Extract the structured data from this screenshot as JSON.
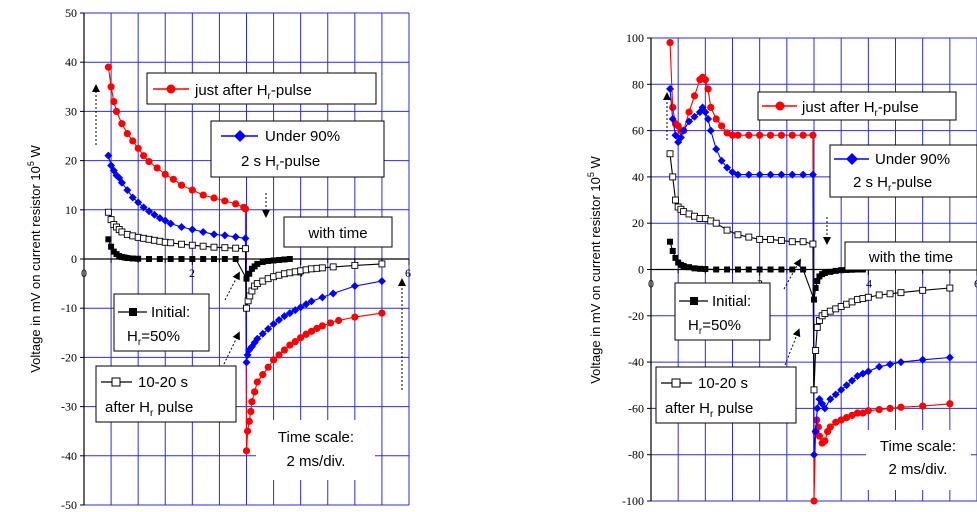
{
  "chart_data": [
    {
      "type": "line",
      "ylabel": "Voltage in mV on current resistor 10^5 W",
      "ylabel_main": "Voltage in mV on current resistor 10",
      "ylabel_sup": "5",
      "ylabel_unit": " W",
      "xlim": [
        0,
        6
      ],
      "ylim": [
        -50,
        50
      ],
      "x_ticks": [
        "0",
        "2",
        "4",
        "6"
      ],
      "y_ticks": [
        "50",
        "40",
        "30",
        "20",
        "10",
        "0",
        "-10",
        "-20",
        "-30",
        "-40",
        "-50"
      ],
      "grid": true,
      "series": [
        {
          "name": "just after Hr-pulse",
          "color": "#ff0000",
          "marker": "circle",
          "x": [
            0.45,
            0.5,
            0.55,
            0.6,
            0.7,
            0.8,
            0.9,
            1.0,
            1.1,
            1.2,
            1.35,
            1.5,
            1.65,
            1.8,
            2.0,
            2.2,
            2.4,
            2.6,
            2.8,
            2.95,
            2.98,
            3.0,
            3.02,
            3.05,
            3.08,
            3.1,
            3.15,
            3.2,
            3.3,
            3.4,
            3.5,
            3.6,
            3.7,
            3.8,
            3.9,
            4.0,
            4.1,
            4.2,
            4.3,
            4.4,
            4.55,
            4.7,
            5.0,
            5.5
          ],
          "y": [
            39,
            35,
            32,
            30,
            27.5,
            25.5,
            24,
            22.5,
            21,
            19.8,
            18.5,
            17.2,
            16.2,
            15,
            14,
            13,
            12.4,
            11.8,
            11.2,
            10.5,
            10.2,
            -39,
            -35,
            -33,
            -31,
            -29,
            -27,
            -25,
            -23.5,
            -22,
            -20.5,
            -19.5,
            -18.5,
            -17.5,
            -16.8,
            -16,
            -15.3,
            -14.7,
            -14.1,
            -13.6,
            -13,
            -12.5,
            -11.8,
            -11
          ]
        },
        {
          "name": "Under 90% 2 s Hr-pulse",
          "color": "#0000ff",
          "marker": "diamond",
          "x": [
            0.45,
            0.5,
            0.55,
            0.6,
            0.65,
            0.7,
            0.8,
            0.9,
            1.0,
            1.1,
            1.2,
            1.3,
            1.4,
            1.5,
            1.6,
            1.8,
            2.0,
            2.2,
            2.4,
            2.6,
            2.8,
            2.98,
            3.0,
            3.02,
            3.05,
            3.1,
            3.15,
            3.2,
            3.3,
            3.4,
            3.5,
            3.6,
            3.7,
            3.8,
            3.9,
            4.0,
            4.1,
            4.2,
            4.4,
            4.6,
            5.0,
            5.5
          ],
          "y": [
            21,
            19,
            18,
            17,
            16.5,
            15.5,
            14,
            12.5,
            11.5,
            10.5,
            9.7,
            9,
            8.3,
            7.8,
            7.2,
            6.5,
            6,
            5.5,
            5,
            4.8,
            4.5,
            4.2,
            -21,
            -19.5,
            -18.5,
            -17.8,
            -17,
            -16.2,
            -15.2,
            -14.2,
            -13.2,
            -12.4,
            -11.6,
            -11,
            -10.4,
            -9.8,
            -9.2,
            -8.6,
            -7.8,
            -7,
            -5.5,
            -4.5
          ]
        },
        {
          "name": "10-20 s after Hr pulse",
          "color": "#000000",
          "marker": "open-square",
          "x": [
            0.45,
            0.5,
            0.55,
            0.6,
            0.65,
            0.7,
            0.8,
            0.9,
            1.0,
            1.1,
            1.2,
            1.3,
            1.4,
            1.5,
            1.6,
            1.8,
            2.0,
            2.2,
            2.4,
            2.6,
            2.8,
            2.98,
            3.0,
            3.03,
            3.06,
            3.1,
            3.15,
            3.2,
            3.3,
            3.4,
            3.5,
            3.6,
            3.7,
            3.8,
            3.9,
            4.0,
            4.1,
            4.2,
            4.3,
            4.4,
            4.6,
            5.0,
            5.5
          ],
          "y": [
            9.5,
            8,
            7,
            6.5,
            6,
            5.5,
            5,
            4.7,
            4.4,
            4.2,
            4,
            3.8,
            3.6,
            3.4,
            3.3,
            3,
            2.8,
            2.6,
            2.4,
            2.3,
            2.2,
            2.1,
            -10,
            -8.5,
            -7.5,
            -6.5,
            -5.5,
            -5,
            -4.5,
            -4,
            -3.6,
            -3.3,
            -3,
            -2.8,
            -2.6,
            -2.4,
            -2.2,
            -2,
            -1.9,
            -1.8,
            -1.6,
            -1.3,
            -1
          ]
        },
        {
          "name": "Initial: Hr=50%",
          "color": "#000000",
          "marker": "square",
          "x": [
            0.45,
            0.5,
            0.55,
            0.6,
            0.65,
            0.7,
            0.75,
            0.8,
            0.9,
            1.0,
            1.2,
            1.4,
            1.6,
            1.8,
            2.0,
            2.2,
            2.4,
            2.6,
            2.8,
            3.0,
            3.05,
            3.1,
            3.15,
            3.2,
            3.3,
            3.4,
            3.5,
            3.6,
            3.7,
            3.8
          ],
          "y": [
            4,
            2.5,
            1.5,
            1,
            0.6,
            0.4,
            0.3,
            0.2,
            0.1,
            0.05,
            0,
            0,
            0,
            0,
            0,
            0,
            0,
            0,
            0,
            -4,
            -3,
            -2,
            -1.5,
            -1,
            -0.6,
            -0.4,
            -0.3,
            -0.2,
            -0.1,
            0
          ]
        }
      ],
      "annotations": {
        "legend_red_prefix": "just after H",
        "legend_red_sub": "r",
        "legend_red_suffix": "-pulse",
        "legend_blue_line1": "Under 90%",
        "legend_blue_line2_prefix": "2 s H",
        "legend_blue_line2_sub": "r",
        "legend_blue_line2_suffix": "-pulse",
        "legend_initial_line1": "Initial:",
        "legend_initial_line2_prefix": "H",
        "legend_initial_line2_sub": "r",
        "legend_initial_line2_suffix": "=50%",
        "legend_1020_line1": "10-20 s",
        "legend_1020_line2_prefix": "after H",
        "legend_1020_line2_sub": "r",
        "legend_1020_line2_suffix": " pulse",
        "with_time": "with time",
        "time_scale_1": "Time scale:",
        "time_scale_2": "2 ms/div."
      }
    },
    {
      "type": "line",
      "ylabel": "Voltage in mV on current resistor 10^5 W",
      "ylabel_main": "Voltage in mV on current resistor 10",
      "ylabel_sup": "5",
      "ylabel_unit": " W",
      "xlim": [
        0,
        6
      ],
      "ylim": [
        -100,
        100
      ],
      "x_ticks": [
        "0",
        "2",
        "4",
        "6"
      ],
      "y_ticks": [
        "100",
        "80",
        "60",
        "40",
        "20",
        "0",
        "-20",
        "-40",
        "-60",
        "-80",
        "-100"
      ],
      "grid": true,
      "series": [
        {
          "name": "just after Hr-pulse",
          "color": "#ff0000",
          "marker": "circle",
          "x": [
            0.35,
            0.4,
            0.45,
            0.5,
            0.55,
            0.6,
            0.7,
            0.8,
            0.9,
            0.95,
            1.0,
            1.05,
            1.1,
            1.2,
            1.3,
            1.4,
            1.5,
            1.6,
            1.8,
            2.0,
            2.2,
            2.4,
            2.6,
            2.8,
            2.98,
            3.0,
            3.03,
            3.05,
            3.08,
            3.1,
            3.15,
            3.2,
            3.25,
            3.3,
            3.4,
            3.5,
            3.6,
            3.7,
            3.8,
            3.9,
            4.0,
            4.2,
            4.4,
            4.6,
            5.0,
            5.5
          ],
          "y": [
            98,
            70,
            63,
            62,
            60,
            60,
            68,
            75,
            82,
            83,
            82,
            78,
            70,
            65,
            62,
            59,
            58,
            58,
            58,
            58,
            58,
            58,
            58,
            58,
            58,
            -100,
            -70,
            -65,
            -68,
            -72,
            -75,
            -74,
            -70,
            -68,
            -66,
            -65,
            -64,
            -63,
            -62,
            -62,
            -61,
            -60.5,
            -60,
            -59.5,
            -59,
            -58
          ]
        },
        {
          "name": "Under 90% 2 s Hr-pulse",
          "color": "#0000ff",
          "marker": "diamond",
          "x": [
            0.35,
            0.4,
            0.45,
            0.5,
            0.55,
            0.6,
            0.7,
            0.8,
            0.9,
            0.95,
            1.0,
            1.05,
            1.1,
            1.2,
            1.3,
            1.4,
            1.5,
            1.6,
            1.8,
            2.0,
            2.2,
            2.4,
            2.6,
            2.8,
            2.98,
            3.0,
            3.03,
            3.06,
            3.1,
            3.15,
            3.2,
            3.3,
            3.4,
            3.5,
            3.6,
            3.7,
            3.8,
            3.9,
            4.0,
            4.2,
            4.4,
            4.6,
            5.0,
            5.5
          ],
          "y": [
            78,
            65,
            58,
            55,
            57,
            60,
            64,
            66,
            68,
            70,
            68,
            65,
            60,
            52,
            47,
            44,
            42,
            41,
            41,
            41,
            41,
            41,
            41,
            41,
            41,
            -80,
            -70,
            -60,
            -56,
            -58,
            -60,
            -56,
            -54,
            -52,
            -50,
            -48,
            -46,
            -45,
            -44,
            -42,
            -41,
            -40,
            -39,
            -38
          ]
        },
        {
          "name": "10-20 s after Hr pulse",
          "color": "#000000",
          "marker": "open-square",
          "x": [
            0.35,
            0.4,
            0.45,
            0.5,
            0.55,
            0.6,
            0.7,
            0.8,
            0.9,
            1.0,
            1.1,
            1.2,
            1.4,
            1.6,
            1.8,
            2.0,
            2.2,
            2.4,
            2.6,
            2.8,
            2.98,
            3.0,
            3.03,
            3.06,
            3.1,
            3.15,
            3.2,
            3.3,
            3.4,
            3.5,
            3.6,
            3.7,
            3.8,
            3.9,
            4.0,
            4.2,
            4.4,
            4.6,
            5.0,
            5.5
          ],
          "y": [
            50,
            40,
            30,
            27,
            26,
            25,
            24,
            23,
            22,
            22,
            21,
            20,
            17,
            15,
            14,
            13,
            13,
            12.5,
            12,
            12,
            11,
            -52,
            -35,
            -25,
            -22,
            -20,
            -19,
            -18,
            -17,
            -16,
            -15,
            -14,
            -13,
            -12.5,
            -12,
            -11,
            -10.5,
            -10,
            -9,
            -8
          ]
        },
        {
          "name": "Initial: Hr=50%",
          "color": "#000000",
          "marker": "square",
          "x": [
            0.35,
            0.4,
            0.45,
            0.5,
            0.55,
            0.6,
            0.7,
            0.8,
            0.9,
            1.0,
            1.2,
            1.4,
            1.6,
            1.8,
            2.0,
            2.2,
            2.4,
            2.6,
            2.8,
            3.0,
            3.03,
            3.06,
            3.1,
            3.15,
            3.2,
            3.3,
            3.4,
            3.5,
            3.6,
            3.7,
            3.8,
            3.9
          ],
          "y": [
            12,
            8,
            5,
            3,
            2,
            1.5,
            1,
            0.5,
            0.3,
            0.2,
            0,
            0,
            0,
            0,
            0,
            0,
            0,
            0,
            0,
            -13,
            -8,
            -5,
            -3,
            -2,
            -1.5,
            -1,
            -0.6,
            -0.3,
            -0.2,
            -0.1,
            0,
            0
          ]
        }
      ],
      "annotations": {
        "legend_red_prefix": "just after H",
        "legend_red_sub": "r",
        "legend_red_suffix": "-pulse",
        "legend_blue_line1": "Under 90%",
        "legend_blue_line2_prefix": "2 s H",
        "legend_blue_line2_sub": "r",
        "legend_blue_line2_suffix": "-pulse",
        "legend_initial_line1": "Initial:",
        "legend_initial_line2_prefix": "H",
        "legend_initial_line2_sub": "r",
        "legend_initial_line2_suffix": "=50%",
        "legend_1020_line1": "10-20 s",
        "legend_1020_line2_prefix": "after H",
        "legend_1020_line2_sub": "r",
        "legend_1020_line2_suffix": " pulse",
        "with_time": "with the time",
        "time_scale_1": "Time scale:",
        "time_scale_2": "2 ms/div."
      }
    }
  ]
}
